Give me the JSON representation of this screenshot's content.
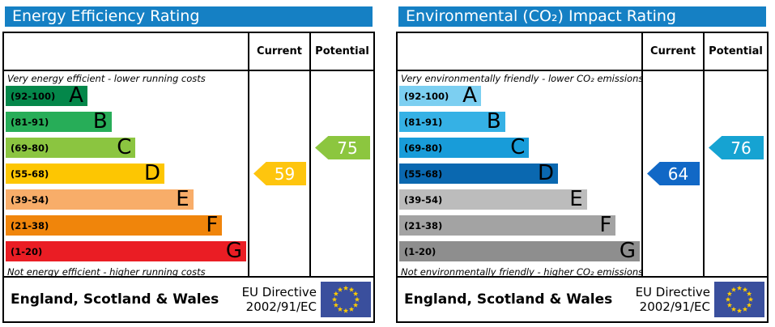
{
  "theme": {
    "header_bar_color": "#1580c4",
    "border_color": "#000000"
  },
  "eu_flag": {
    "background": "#3a4f9d",
    "star_color": "#ffcc00",
    "star_count": 12
  },
  "chart_data": [
    {
      "type": "bar",
      "orientation": "horizontal",
      "title": "Energy Efficiency Rating",
      "columns": [
        "Current",
        "Potential"
      ],
      "top_caption": "Very energy efficient - lower running costs",
      "bottom_caption": "Not energy efficient - higher running costs",
      "categories": [
        "A (92-100)",
        "B (81-91)",
        "C (69-80)",
        "D (55-68)",
        "E (39-54)",
        "F (21-38)",
        "G (1-20)"
      ],
      "bands": [
        {
          "letter": "A",
          "range": "(92-100)",
          "min": 92,
          "max": 100,
          "width_pct": 34,
          "color": "#04874a"
        },
        {
          "letter": "B",
          "range": "(81-91)",
          "min": 81,
          "max": 91,
          "width_pct": 44,
          "color": "#27ad58"
        },
        {
          "letter": "C",
          "range": "(69-80)",
          "min": 69,
          "max": 80,
          "width_pct": 54,
          "color": "#8bc540"
        },
        {
          "letter": "D",
          "range": "(55-68)",
          "min": 55,
          "max": 68,
          "width_pct": 66,
          "color": "#fdc602"
        },
        {
          "letter": "E",
          "range": "(39-54)",
          "min": 39,
          "max": 54,
          "width_pct": 78,
          "color": "#f8ad69"
        },
        {
          "letter": "F",
          "range": "(21-38)",
          "min": 21,
          "max": 38,
          "width_pct": 90,
          "color": "#f0850b"
        },
        {
          "letter": "G",
          "range": "(1-20)",
          "min": 1,
          "max": 20,
          "width_pct": 100,
          "color": "#ea1d24"
        }
      ],
      "current": {
        "value": 59,
        "band": "D",
        "color": "#fec50e"
      },
      "potential": {
        "value": 75,
        "band": "C",
        "color": "#8cc63f"
      },
      "footer": {
        "region": "England, Scotland & Wales",
        "directive_line1": "EU Directive",
        "directive_line2": "2002/91/EC"
      }
    },
    {
      "type": "bar",
      "orientation": "horizontal",
      "title": "Environmental (CO₂) Impact Rating",
      "columns": [
        "Current",
        "Potential"
      ],
      "top_caption": "Very environmentally friendly - lower CO₂ emissions",
      "bottom_caption": "Not environmentally friendly - higher CO₂ emissions",
      "categories": [
        "A (92-100)",
        "B (81-91)",
        "C (69-80)",
        "D (55-68)",
        "E (39-54)",
        "F (21-38)",
        "G (1-20)"
      ],
      "bands": [
        {
          "letter": "A",
          "range": "(92-100)",
          "min": 92,
          "max": 100,
          "width_pct": 34,
          "color": "#7ccff1"
        },
        {
          "letter": "B",
          "range": "(81-91)",
          "min": 81,
          "max": 91,
          "width_pct": 44,
          "color": "#35b1e5"
        },
        {
          "letter": "C",
          "range": "(69-80)",
          "min": 69,
          "max": 80,
          "width_pct": 54,
          "color": "#189cd9"
        },
        {
          "letter": "D",
          "range": "(55-68)",
          "min": 55,
          "max": 68,
          "width_pct": 66,
          "color": "#0a68b0"
        },
        {
          "letter": "E",
          "range": "(39-54)",
          "min": 39,
          "max": 54,
          "width_pct": 78,
          "color": "#bcbcbc"
        },
        {
          "letter": "F",
          "range": "(21-38)",
          "min": 21,
          "max": 38,
          "width_pct": 90,
          "color": "#a3a3a3"
        },
        {
          "letter": "G",
          "range": "(1-20)",
          "min": 1,
          "max": 20,
          "width_pct": 100,
          "color": "#8e8e8e"
        }
      ],
      "current": {
        "value": 64,
        "band": "D",
        "color": "#1168c6"
      },
      "potential": {
        "value": 76,
        "band": "C",
        "color": "#16a3d2"
      },
      "footer": {
        "region": "England, Scotland & Wales",
        "directive_line1": "EU Directive",
        "directive_line2": "2002/91/EC"
      }
    }
  ]
}
